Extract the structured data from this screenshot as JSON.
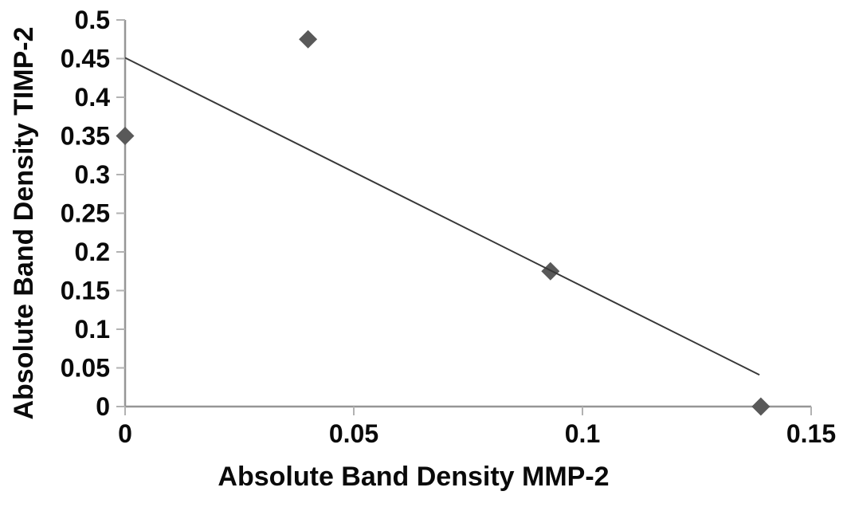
{
  "chart_data": {
    "type": "scatter",
    "title": "",
    "xlabel": "Absolute Band Density MMP-2",
    "ylabel": "Absolute Band Density TIMP-2",
    "xlim": [
      0,
      0.15
    ],
    "ylim": [
      0,
      0.5
    ],
    "x_ticks": [
      "0",
      "0.05",
      "0.1",
      "0.15"
    ],
    "y_ticks": [
      "0",
      "0.05",
      "0.1",
      "0.15",
      "0.2",
      "0.25",
      "0.3",
      "0.35",
      "0.4",
      "0.45",
      "0.5"
    ],
    "grid": false,
    "legend": false,
    "marker": "diamond",
    "points": [
      {
        "x": 0,
        "y": 0.35
      },
      {
        "x": 0.04,
        "y": 0.475
      },
      {
        "x": 0.093,
        "y": 0.175
      },
      {
        "x": 0.139,
        "y": 0
      }
    ],
    "trendline": {
      "x1": 0,
      "y1": 0.451,
      "x2": 0.1387,
      "y2": 0.041
    },
    "colors": {
      "marker": "#595959",
      "trendline": "#383838",
      "axis": "#969696",
      "tick": "#b2b2b2",
      "text": "#0a0a0a",
      "background": "#ffffff"
    }
  }
}
